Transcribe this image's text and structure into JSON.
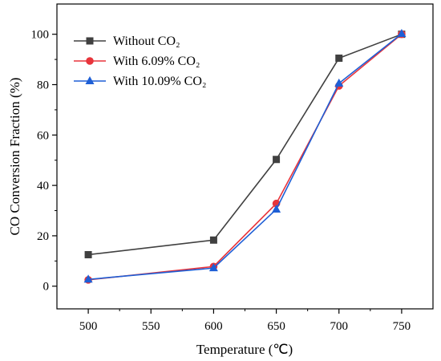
{
  "chart_data": {
    "type": "line",
    "xlabel": "Temperature (℃)",
    "ylabel": "CO Conversion Fraction (%)",
    "x": [
      500,
      550,
      600,
      650,
      700,
      750
    ],
    "xlim": [
      475,
      775
    ],
    "ylim": [
      -9,
      112
    ],
    "xticks": [
      500,
      550,
      600,
      650,
      700,
      750
    ],
    "yticks": [
      0,
      20,
      40,
      60,
      80,
      100
    ],
    "grid": false,
    "legend_position": "top-left",
    "series": [
      {
        "name": "Without CO₂",
        "color": "#404040",
        "marker": "square",
        "x": [
          500,
          600,
          650,
          700,
          750
        ],
        "y": [
          12.5,
          18.3,
          50.3,
          90.5,
          100
        ]
      },
      {
        "name": "With 6.09% CO₂",
        "color": "#e8343b",
        "marker": "circle",
        "x": [
          500,
          600,
          650,
          700,
          750
        ],
        "y": [
          2.5,
          7.8,
          32.8,
          79.5,
          100
        ]
      },
      {
        "name": "With 10.09% CO₂",
        "color": "#1e5fd6",
        "marker": "triangle",
        "x": [
          500,
          600,
          650,
          700,
          750
        ],
        "y": [
          2.7,
          7.2,
          30.5,
          80.5,
          100.2
        ]
      }
    ]
  }
}
